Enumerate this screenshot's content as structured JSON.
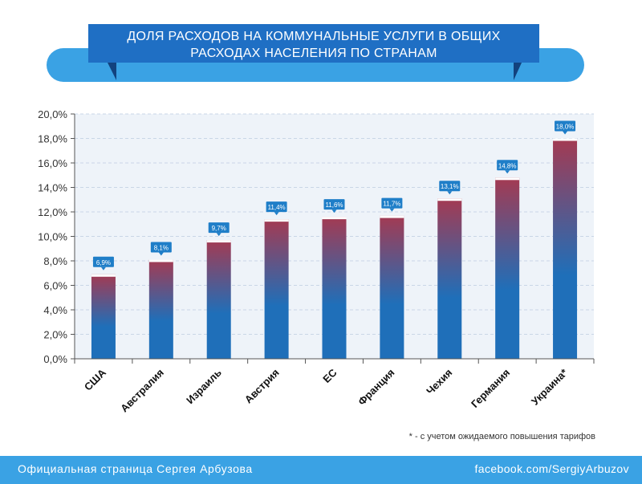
{
  "header": {
    "title_line1": "ДОЛЯ РАСХОДОВ НА КОММУНАЛЬНЫЕ УСЛУГИ В ОБЩИХ",
    "title_line2": "РАСХОДАХ НАСЕЛЕНИЯ ПО СТРАНАМ"
  },
  "chart_data": {
    "type": "bar",
    "categories": [
      "США",
      "Австралия",
      "Израиль",
      "Австрия",
      "ЕС",
      "Франция",
      "Чехия",
      "Германия",
      "Украина*"
    ],
    "values": [
      6.9,
      8.1,
      9.7,
      11.4,
      11.6,
      11.7,
      13.1,
      14.8,
      18.0
    ],
    "data_labels": [
      "6,9%",
      "8,1%",
      "9,7%",
      "11,4%",
      "11,6%",
      "11,7%",
      "13,1%",
      "14,8%",
      "18,0%"
    ],
    "y_ticks": [
      "0,0%",
      "2,0%",
      "4,0%",
      "6,0%",
      "8,0%",
      "10,0%",
      "12,0%",
      "14,0%",
      "16,0%",
      "18,0%",
      "20,0%"
    ],
    "ylim": [
      0,
      20
    ],
    "grid": true,
    "colors": {
      "bar_bottom": "#1f6fb9",
      "bar_top": "#a43a52",
      "label_bg": "#1f7ec8",
      "axis_bg": "#eef3f9"
    }
  },
  "footnote": "* - с учетом ожидаемого повышения тарифов",
  "footer": {
    "left": "Официальная страница Сергея Арбузова",
    "right": "facebook.com/SergiyArbuzov"
  }
}
